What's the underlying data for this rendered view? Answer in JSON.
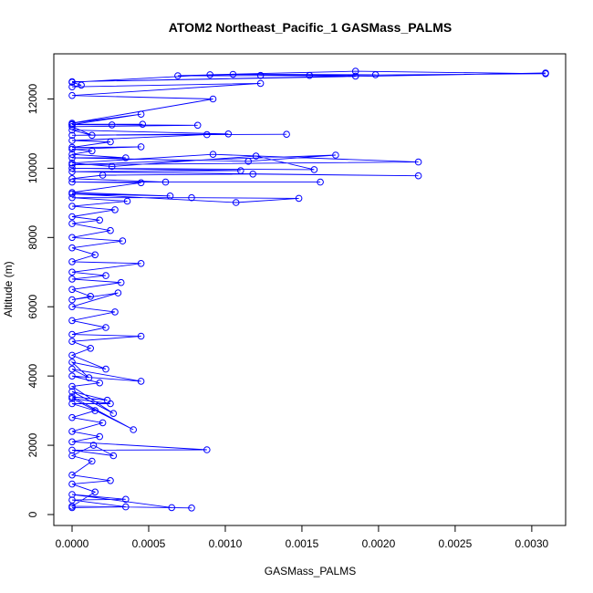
{
  "chart_data": {
    "type": "scatter",
    "title": "ATOM2 Northeast_Pacific_1 GASMass_PALMS",
    "xlabel": "GASMass_PALMS",
    "ylabel": "Altitude (m)",
    "xlim": [
      0,
      0.00309
    ],
    "ylim": [
      180,
      12800
    ],
    "x_ticks": [
      0,
      0.0005,
      0.001,
      0.0015,
      0.002,
      0.0025,
      0.003
    ],
    "x_tick_labels": [
      "0.0000",
      "0.0005",
      "0.0010",
      "0.0015",
      "0.0020",
      "0.0025",
      "0.0030"
    ],
    "y_ticks": [
      0,
      2000,
      4000,
      6000,
      8000,
      10000,
      12000
    ],
    "y_tick_labels": [
      "0",
      "2000",
      "4000",
      "6000",
      "8000",
      "10000",
      "12000"
    ],
    "grid": false,
    "series": [
      {
        "marker": "open-circle",
        "connected": true,
        "color": "#0000ff",
        "points": [
          [
            0.0,
            200
          ],
          [
            0.00035,
            220
          ],
          [
            0.0,
            420
          ],
          [
            0.00035,
            440
          ],
          [
            0.0,
            580
          ],
          [
            0.00065,
            200
          ],
          [
            0.00078,
            190
          ],
          [
            0.0,
            240
          ],
          [
            0.00015,
            650
          ],
          [
            0.0,
            880
          ],
          [
            0.00025,
            980
          ],
          [
            0.0,
            1140
          ],
          [
            0.00013,
            1540
          ],
          [
            0.0,
            1700
          ],
          [
            0.00014,
            2000
          ],
          [
            0.00027,
            1700
          ],
          [
            0.0,
            1860
          ],
          [
            0.00088,
            1870
          ],
          [
            0.0,
            2100
          ],
          [
            0.00018,
            2250
          ],
          [
            0.0,
            2400
          ],
          [
            0.0002,
            2650
          ],
          [
            0.0,
            2800
          ],
          [
            0.00015,
            3000
          ],
          [
            0.0,
            3200
          ],
          [
            0.00025,
            3200
          ],
          [
            0.0,
            3350
          ],
          [
            0.0004,
            2450
          ],
          [
            0.0,
            3400
          ],
          [
            0.00023,
            3300
          ],
          [
            0.0,
            3550
          ],
          [
            0.00027,
            2920
          ],
          [
            0.0,
            3700
          ],
          [
            0.00018,
            3800
          ],
          [
            0.0,
            4000
          ],
          [
            0.00045,
            3850
          ],
          [
            0.0,
            4200
          ],
          [
            0.00011,
            3950
          ],
          [
            0.0,
            4400
          ],
          [
            0.00022,
            4200
          ],
          [
            0.0,
            4600
          ],
          [
            0.00012,
            4800
          ],
          [
            0.0,
            5000
          ],
          [
            0.00045,
            5150
          ],
          [
            0.0,
            5200
          ],
          [
            0.00022,
            5400
          ],
          [
            0.0,
            5600
          ],
          [
            0.00028,
            5850
          ],
          [
            0.0,
            6000
          ],
          [
            0.0003,
            6400
          ],
          [
            0.0,
            6200
          ],
          [
            0.00012,
            6300
          ],
          [
            0.0,
            6500
          ],
          [
            0.00032,
            6700
          ],
          [
            0.0,
            6800
          ],
          [
            0.00022,
            6900
          ],
          [
            0.0,
            7000
          ],
          [
            0.00045,
            7250
          ],
          [
            0.0,
            7300
          ],
          [
            0.00015,
            7500
          ],
          [
            0.0,
            7700
          ],
          [
            0.00033,
            7900
          ],
          [
            0.0,
            8000
          ],
          [
            0.00025,
            8200
          ],
          [
            0.0,
            8400
          ],
          [
            0.00018,
            8500
          ],
          [
            0.0,
            8600
          ],
          [
            0.00028,
            8800
          ],
          [
            0.0,
            8900
          ],
          [
            0.00036,
            9050
          ],
          [
            0.0,
            9150
          ],
          [
            0.00078,
            9150
          ],
          [
            0.00148,
            9130
          ],
          [
            0.00107,
            9010
          ],
          [
            0.0,
            9260
          ],
          [
            0.00064,
            9200
          ],
          [
            0.0,
            9300
          ],
          [
            0.00045,
            9580
          ],
          [
            0.0,
            9600
          ],
          [
            0.00162,
            9600
          ],
          [
            0.00061,
            9600
          ],
          [
            0.0,
            9700
          ],
          [
            0.0002,
            9800
          ],
          [
            0.00118,
            9830
          ],
          [
            0.00226,
            9780
          ],
          [
            0.0,
            9900
          ],
          [
            0.0011,
            9930
          ],
          [
            0.0,
            10000
          ],
          [
            0.00158,
            9960
          ],
          [
            0.0012,
            10350
          ],
          [
            0.00026,
            10050
          ],
          [
            0.0,
            10150
          ],
          [
            0.00092,
            10400
          ],
          [
            0.00226,
            10180
          ],
          [
            0.0,
            10100
          ],
          [
            0.00172,
            10380
          ],
          [
            0.00115,
            10200
          ],
          [
            0.0,
            10300
          ],
          [
            0.00035,
            10300
          ],
          [
            0.0,
            10400
          ],
          [
            0.00013,
            10500
          ],
          [
            0.0,
            10550
          ],
          [
            0.00045,
            10620
          ],
          [
            0.0,
            10600
          ],
          [
            0.00025,
            10760
          ],
          [
            0.0,
            10800
          ],
          [
            0.00088,
            10970
          ],
          [
            0.0014,
            10980
          ],
          [
            0.0,
            10950
          ],
          [
            0.00102,
            10990
          ],
          [
            0.0,
            11100
          ],
          [
            0.00013,
            10950
          ],
          [
            0.0,
            11200
          ],
          [
            0.00082,
            11240
          ],
          [
            0.0,
            11260
          ],
          [
            0.00026,
            11250
          ],
          [
            0.0,
            11270
          ],
          [
            0.00046,
            11270
          ],
          [
            0.0,
            11260
          ],
          [
            0.00045,
            11560
          ],
          [
            0.0,
            11300
          ],
          [
            0.00092,
            12000
          ],
          [
            0.0,
            12100
          ],
          [
            0.00123,
            12450
          ],
          [
            0.0,
            12350
          ],
          [
            6e-05,
            12400
          ],
          [
            0.0,
            12480
          ],
          [
            0.0009,
            12700
          ],
          [
            0.00185,
            12800
          ],
          [
            0.00309,
            12730
          ],
          [
            0.00155,
            12680
          ],
          [
            0.00069,
            12670
          ],
          [
            0.00105,
            12710
          ],
          [
            0.00198,
            12700
          ],
          [
            0.00123,
            12680
          ],
          [
            0.00185,
            12660
          ],
          [
            0.0,
            12500
          ],
          [
            0.00309,
            12750
          ]
        ]
      }
    ]
  }
}
